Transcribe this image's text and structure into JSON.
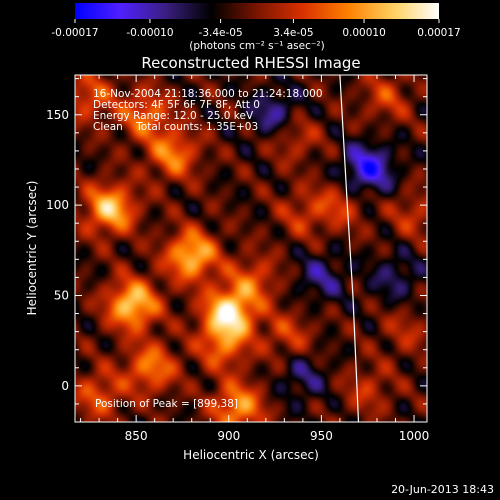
{
  "colors": {
    "background": "#000000",
    "text": "#ffffff",
    "colormap": [
      "#0000ff",
      "#5020ff",
      "#3a1f80",
      "#000000",
      "#7a1500",
      "#d83000",
      "#ff8000",
      "#ffd060",
      "#ffffff"
    ]
  },
  "colorbar": {
    "tick_labels": [
      "-0.00017",
      "-0.00010",
      "-3.4e-05",
      "3.4e-05",
      "0.00010",
      "0.00017"
    ],
    "units_label": "(photons cm⁻² s⁻¹ asec⁻²)"
  },
  "chart_data": {
    "type": "heatmap",
    "title": "Reconstructed RHESSI Image",
    "xlabel": "Heliocentric X (arcsec)",
    "ylabel": "Heliocentric Y (arcsec)",
    "xlim": [
      817,
      1007
    ],
    "ylim": [
      -20,
      172
    ],
    "x_ticks": [
      850,
      900,
      950,
      1000
    ],
    "y_ticks": [
      0,
      50,
      100,
      150
    ],
    "x_tick_labels": [
      "850",
      "900",
      "950",
      "1000"
    ],
    "y_tick_labels": [
      "0",
      "50",
      "100",
      "150"
    ],
    "value_range": [
      -0.00017,
      0.00017
    ],
    "limb_curve": [
      [
        960,
        172
      ],
      [
        964,
        100
      ],
      [
        967,
        50
      ],
      [
        970,
        -20
      ]
    ],
    "sources": [
      {
        "x": 900,
        "y": 40,
        "amp": 1.0
      },
      {
        "x": 880,
        "y": 72,
        "amp": 0.85
      },
      {
        "x": 848,
        "y": 45,
        "amp": 0.9
      },
      {
        "x": 836,
        "y": 98,
        "amp": 0.85
      },
      {
        "x": 870,
        "y": 128,
        "amp": 0.6
      },
      {
        "x": 858,
        "y": 10,
        "amp": 0.6
      },
      {
        "x": 897,
        "y": 22,
        "amp": 0.5
      },
      {
        "x": 855,
        "y": 150,
        "amp": 0.55
      },
      {
        "x": 935,
        "y": 138,
        "amp": 0.35
      },
      {
        "x": 940,
        "y": 95,
        "amp": 0.3
      },
      {
        "x": 960,
        "y": 100,
        "amp": 0.35
      },
      {
        "x": 985,
        "y": 160,
        "amp": 0.35
      },
      {
        "x": 1000,
        "y": 95,
        "amp": 0.3
      },
      {
        "x": 913,
        "y": 58,
        "amp": 0.45
      },
      {
        "x": 905,
        "y": -12,
        "amp": 0.7
      },
      {
        "x": 975,
        "y": -2,
        "amp": 0.3
      },
      {
        "x": 996,
        "y": 30,
        "amp": 0.25
      },
      {
        "x": 830,
        "y": -5,
        "amp": 0.45
      },
      {
        "x": 932,
        "y": 28,
        "amp": 0.35
      },
      {
        "x": 825,
        "y": 160,
        "amp": 0.45
      },
      {
        "x": 975,
        "y": 120,
        "amp": -0.7
      },
      {
        "x": 925,
        "y": 150,
        "amp": -0.45
      },
      {
        "x": 950,
        "y": 60,
        "amp": -0.35
      },
      {
        "x": 990,
        "y": 60,
        "amp": -0.3
      },
      {
        "x": 940,
        "y": 5,
        "amp": -0.3
      }
    ],
    "info_lines": [
      "16-Nov-2004 21:18:36.000 to 21:24:18.000",
      "Detectors: 4F 5F 6F 7F 8F, Att 0",
      "Energy Range: 12.0 - 25.0 keV",
      "Clean    Total counts: 1.35E+03"
    ],
    "peak_label": "Position of Peak = [899,38]"
  },
  "footer": {
    "timestamp": "20-Jun-2013 18:43"
  }
}
